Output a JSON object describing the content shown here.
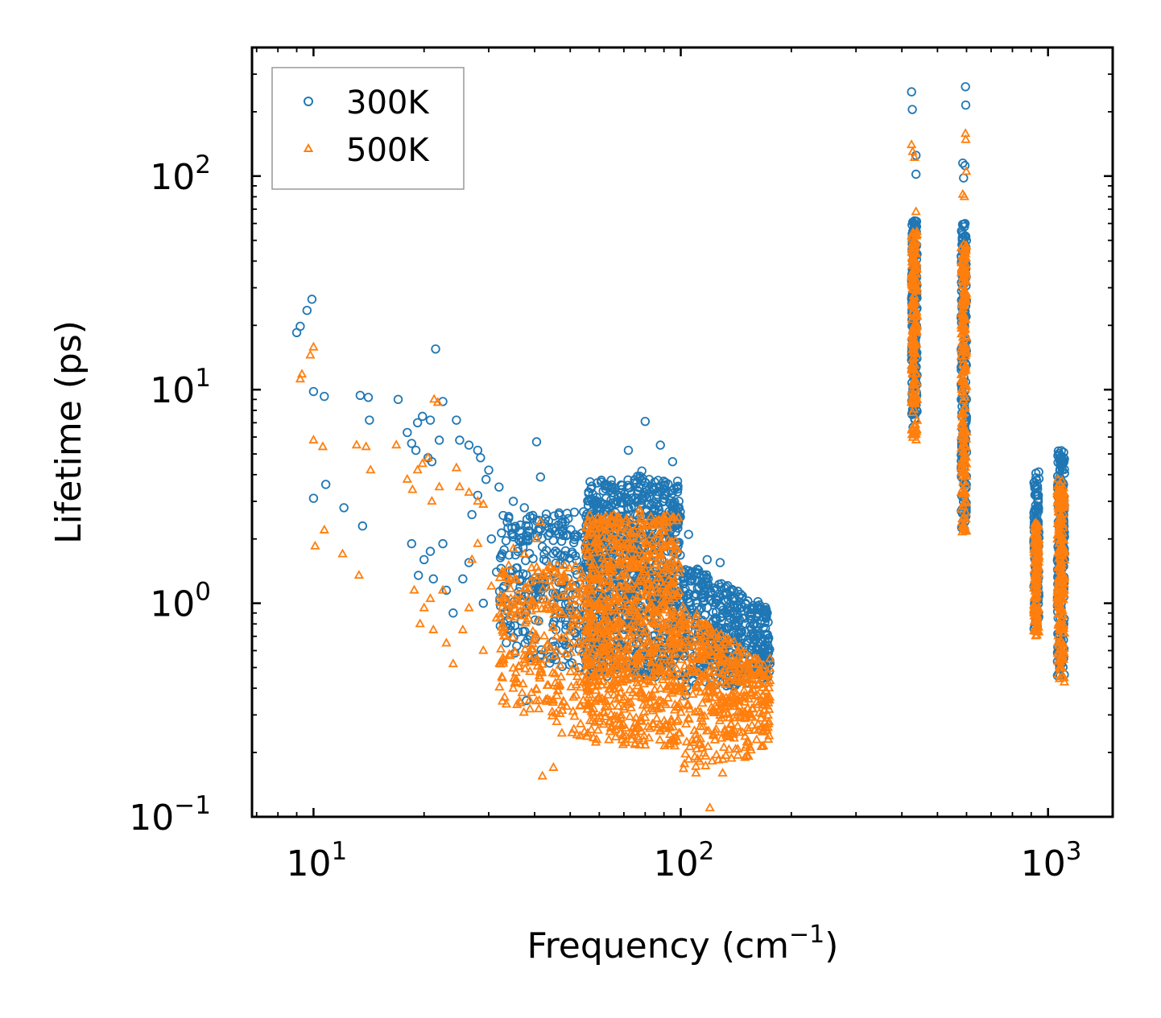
{
  "chart_data": {
    "type": "scatter",
    "title": "",
    "xlabel": "Frequency (cm",
    "xlabel_sup": "−1",
    "xlabel_suffix": ")",
    "ylabel": "Lifetime (ps)",
    "xscale": "log",
    "yscale": "log",
    "xlim": [
      6.8,
      1500
    ],
    "ylim": [
      0.1,
      400
    ],
    "x_ticks": [
      {
        "base": "10",
        "exp": "1",
        "value": 10
      },
      {
        "base": "10",
        "exp": "2",
        "value": 100
      },
      {
        "base": "10",
        "exp": "3",
        "value": 1000
      }
    ],
    "y_ticks": [
      {
        "base": "10",
        "exp": "−1",
        "value": 0.1
      },
      {
        "base": "10",
        "exp": "0",
        "value": 1
      },
      {
        "base": "10",
        "exp": "1",
        "value": 10
      },
      {
        "base": "10",
        "exp": "2",
        "value": 100
      }
    ],
    "legend_position": "top-left",
    "series": [
      {
        "name": "300K",
        "marker": "circle",
        "color": "#1f77b4",
        "points": [
          [
            9.0,
            18.5
          ],
          [
            9.2,
            19.8
          ],
          [
            9.6,
            23.5
          ],
          [
            9.9,
            26.5
          ],
          [
            10.0,
            9.8
          ],
          [
            10.7,
            9.3
          ],
          [
            10.0,
            3.1
          ],
          [
            10.8,
            3.6
          ],
          [
            12.1,
            2.8
          ],
          [
            13.4,
            9.4
          ],
          [
            14.1,
            9.2
          ],
          [
            14.2,
            7.2
          ],
          [
            13.6,
            2.3
          ],
          [
            17.0,
            9.0
          ],
          [
            18.0,
            6.3
          ],
          [
            18.5,
            5.6
          ],
          [
            19.2,
            7.0
          ],
          [
            19.8,
            7.5
          ],
          [
            20.8,
            7.2
          ],
          [
            19.0,
            5.2
          ],
          [
            21.5,
            15.5
          ],
          [
            22.5,
            8.8
          ],
          [
            20.5,
            4.8
          ],
          [
            21.0,
            4.6
          ],
          [
            22.0,
            5.8
          ],
          [
            24.5,
            7.2
          ],
          [
            25.0,
            5.8
          ],
          [
            26.5,
            5.5
          ],
          [
            28.0,
            5.2
          ],
          [
            28.5,
            4.8
          ],
          [
            30.0,
            4.2
          ],
          [
            29.5,
            3.8
          ],
          [
            32.0,
            3.5
          ],
          [
            18.5,
            1.9
          ],
          [
            19.3,
            1.35
          ],
          [
            20.0,
            1.6
          ],
          [
            20.8,
            1.75
          ],
          [
            21.2,
            1.3
          ],
          [
            22.5,
            1.9
          ],
          [
            23.0,
            1.15
          ],
          [
            24.0,
            0.9
          ],
          [
            25.5,
            1.3
          ],
          [
            26.5,
            1.55
          ],
          [
            27.0,
            2.6
          ],
          [
            28.0,
            3.2
          ],
          [
            29.0,
            1.0
          ],
          [
            30.5,
            2.0
          ],
          [
            31.5,
            1.4
          ],
          [
            33.0,
            1.2
          ],
          [
            34.0,
            2.5
          ],
          [
            35.0,
            3.0
          ],
          [
            36.0,
            1.8
          ],
          [
            37.5,
            2.8
          ],
          [
            38.5,
            2.3
          ],
          [
            40.5,
            5.7
          ],
          [
            41.5,
            3.9
          ],
          [
            38.0,
            0.35
          ],
          [
            40.0,
            0.55
          ]
        ],
        "clusters": [
          {
            "x": [
              32,
              58
            ],
            "y_lo": [
              0.6,
              0.45
            ],
            "y_hi": [
              2.6,
              2.7
            ],
            "n": 300
          },
          {
            "x": [
              55,
              100
            ],
            "y_lo": [
              0.45,
              0.45
            ],
            "y_hi": [
              3.8,
              3.8
            ],
            "peak_x": 78,
            "peak_y": 4.6,
            "n": 900
          },
          {
            "x": [
              100,
              175
            ],
            "y_lo": [
              0.35,
              0.45
            ],
            "y_hi": [
              1.6,
              0.95
            ],
            "n": 450
          },
          {
            "x": [
              425,
              440
            ],
            "y_lo": [
              6.5,
              6.5
            ],
            "y_hi": [
              62,
              62
            ],
            "n": 200
          },
          {
            "x": [
              580,
              600
            ],
            "y_lo": [
              2.2,
              2.2
            ],
            "y_hi": [
              60,
              60
            ],
            "n": 220
          },
          {
            "x": [
              915,
              945
            ],
            "y_lo": [
              0.75,
              0.75
            ],
            "y_hi": [
              4.2,
              4.2
            ],
            "n": 140
          },
          {
            "x": [
              1060,
              1110
            ],
            "y_lo": [
              0.45,
              0.45
            ],
            "y_hi": [
              5.2,
              5.2
            ],
            "n": 220
          }
        ],
        "outliers": [
          [
            425,
            248
          ],
          [
            427,
            205
          ],
          [
            437,
            125
          ],
          [
            437,
            102
          ],
          [
            586,
            115
          ],
          [
            589,
            98
          ],
          [
            596,
            262
          ],
          [
            597,
            215
          ],
          [
            594,
            112
          ],
          [
            80,
            7.1
          ],
          [
            72,
            5.2
          ],
          [
            88,
            5.5
          ],
          [
            95,
            4.6
          ],
          [
            105,
            2.1
          ],
          [
            118,
            1.6
          ],
          [
            128,
            1.55
          ],
          [
            140,
            0.95
          ],
          [
            165,
            0.8
          ],
          [
            172,
            0.9
          ],
          [
            150,
            1.0
          ]
        ]
      },
      {
        "name": "500K",
        "marker": "triangle",
        "color": "#ff7f0e",
        "points": [
          [
            9.2,
            11.2
          ],
          [
            9.3,
            11.8
          ],
          [
            9.8,
            14.5
          ],
          [
            10.0,
            15.8
          ],
          [
            10.0,
            5.8
          ],
          [
            10.6,
            5.4
          ],
          [
            10.1,
            1.85
          ],
          [
            10.7,
            2.2
          ],
          [
            12.0,
            1.7
          ],
          [
            13.1,
            5.5
          ],
          [
            13.9,
            5.4
          ],
          [
            14.3,
            4.2
          ],
          [
            13.3,
            1.35
          ],
          [
            16.8,
            5.5
          ],
          [
            18.0,
            3.8
          ],
          [
            18.6,
            3.4
          ],
          [
            19.2,
            4.2
          ],
          [
            19.8,
            4.5
          ],
          [
            21.3,
            9.0
          ],
          [
            21.8,
            8.7
          ],
          [
            20.5,
            4.8
          ],
          [
            21.0,
            3.0
          ],
          [
            22.0,
            3.5
          ],
          [
            24.5,
            4.3
          ],
          [
            25.0,
            3.5
          ],
          [
            26.5,
            3.3
          ],
          [
            28.0,
            3.0
          ],
          [
            29.0,
            2.9
          ],
          [
            18.8,
            1.15
          ],
          [
            19.5,
            0.8
          ],
          [
            20.0,
            0.95
          ],
          [
            20.8,
            1.05
          ],
          [
            21.2,
            0.75
          ],
          [
            22.5,
            1.15
          ],
          [
            23.0,
            0.65
          ],
          [
            24.0,
            0.52
          ],
          [
            25.5,
            0.75
          ],
          [
            26.5,
            0.95
          ],
          [
            27.0,
            1.6
          ],
          [
            28.0,
            1.9
          ],
          [
            29.0,
            0.6
          ],
          [
            30.5,
            1.2
          ],
          [
            31.5,
            0.85
          ],
          [
            33.0,
            0.7
          ],
          [
            34.0,
            1.5
          ],
          [
            35.0,
            1.8
          ],
          [
            36.0,
            1.1
          ],
          [
            37.5,
            1.7
          ],
          [
            40.5,
            2.0
          ],
          [
            41.5,
            2.4
          ]
        ],
        "clusters": [
          {
            "x": [
              32,
              58
            ],
            "y_lo": [
              0.35,
              0.2
            ],
            "y_hi": [
              1.4,
              1.6
            ],
            "n": 300
          },
          {
            "x": [
              55,
              100
            ],
            "y_lo": [
              0.22,
              0.2
            ],
            "y_hi": [
              2.6,
              2.6
            ],
            "peak_x": 78,
            "peak_y": 3.0,
            "n": 900
          },
          {
            "x": [
              100,
              175
            ],
            "y_lo": [
              0.16,
              0.2
            ],
            "y_hi": [
              1.0,
              0.5
            ],
            "n": 450
          },
          {
            "x": [
              425,
              440
            ],
            "y_lo": [
              5.8,
              5.8
            ],
            "y_hi": [
              55,
              55
            ],
            "n": 200
          },
          {
            "x": [
              580,
              600
            ],
            "y_lo": [
              2.0,
              2.0
            ],
            "y_hi": [
              48,
              48
            ],
            "n": 220
          },
          {
            "x": [
              915,
              945
            ],
            "y_lo": [
              0.7,
              0.7
            ],
            "y_hi": [
              2.4,
              2.4
            ],
            "n": 140
          },
          {
            "x": [
              1060,
              1110
            ],
            "y_lo": [
              0.42,
              0.42
            ],
            "y_hi": [
              3.9,
              3.9
            ],
            "n": 220
          }
        ],
        "outliers": [
          [
            425,
            140
          ],
          [
            428,
            130
          ],
          [
            433,
            122
          ],
          [
            437,
            68
          ],
          [
            586,
            82
          ],
          [
            592,
            80
          ],
          [
            596,
            158
          ],
          [
            597,
            148
          ],
          [
            599,
            105
          ],
          [
            120,
            0.11
          ],
          [
            42,
            0.155
          ],
          [
            45,
            0.17
          ],
          [
            110,
            0.16
          ],
          [
            130,
            0.16
          ],
          [
            175,
            0.55
          ]
        ]
      }
    ]
  }
}
